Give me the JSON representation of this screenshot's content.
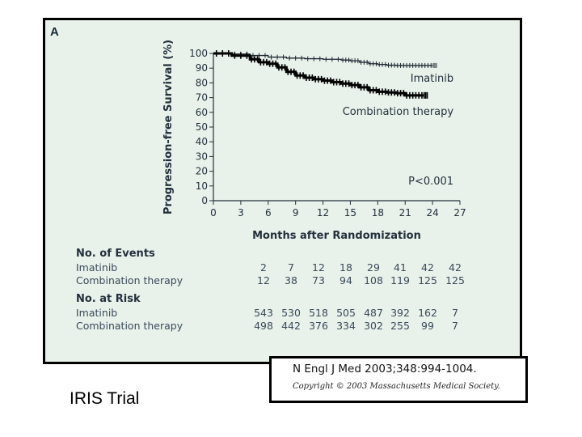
{
  "panel_letter": "A",
  "chart_data": {
    "type": "line",
    "title": "",
    "xlabel": "Months after Randomization",
    "ylabel": "Progression-free Survival (%)",
    "xlim": [
      0,
      27
    ],
    "ylim": [
      0,
      100
    ],
    "x_ticks": [
      "0",
      "3",
      "6",
      "9",
      "12",
      "15",
      "18",
      "21",
      "24",
      "27"
    ],
    "y_ticks": [
      "0",
      "10",
      "20",
      "30",
      "40",
      "50",
      "60",
      "70",
      "80",
      "90",
      "100"
    ],
    "series": [
      {
        "name": "Imatinib",
        "label": "Imatinib",
        "x": [
          0,
          2,
          4,
          6,
          8,
          10,
          12,
          14,
          15,
          16,
          17,
          18,
          19,
          20,
          21,
          22,
          23,
          24
        ],
        "values": [
          100,
          99.6,
          98.6,
          97.5,
          96.8,
          96.4,
          96,
          95.5,
          95,
          94,
          93,
          92.5,
          92,
          91.8,
          91.8,
          91.8,
          91.8,
          91.8
        ],
        "color": "#1c2630",
        "weight": "thin"
      },
      {
        "name": "Combination therapy",
        "label": "Combination therapy",
        "x": [
          0,
          2,
          4,
          5,
          6,
          7,
          8,
          9,
          10,
          11,
          12,
          13,
          14,
          15,
          16,
          17,
          18,
          19,
          20,
          21,
          22,
          23
        ],
        "values": [
          100,
          98.5,
          96,
          94,
          93,
          90.5,
          87.5,
          85,
          83.5,
          82.5,
          81.5,
          80.5,
          79.5,
          78.5,
          77,
          75,
          74,
          73.5,
          73,
          71.5,
          71.5,
          71.5
        ],
        "color": "#000000",
        "weight": "thick"
      }
    ],
    "annotations": [
      {
        "text": "P<0.001"
      }
    ]
  },
  "events_table": {
    "heading": "No. of Events",
    "rows": [
      {
        "label": "Imatinib",
        "values": [
          "2",
          "7",
          "12",
          "18",
          "29",
          "41",
          "42",
          "42"
        ]
      },
      {
        "label": "Combination therapy",
        "values": [
          "12",
          "38",
          "73",
          "94",
          "108",
          "119",
          "125",
          "125"
        ]
      }
    ]
  },
  "risk_table": {
    "heading": "No. at Risk",
    "rows": [
      {
        "label": "Imatinib",
        "values": [
          "543",
          "530",
          "518",
          "505",
          "487",
          "392",
          "162",
          "7"
        ]
      },
      {
        "label": "Combination therapy",
        "values": [
          "498",
          "442",
          "376",
          "334",
          "302",
          "255",
          "99",
          "7"
        ]
      }
    ]
  },
  "citation": {
    "reference": "N Engl J Med 2003;348:994-1004.",
    "copyright": "Copyright © 2003 Massachusetts Medical Society."
  },
  "trial_label": "IRIS Trial"
}
